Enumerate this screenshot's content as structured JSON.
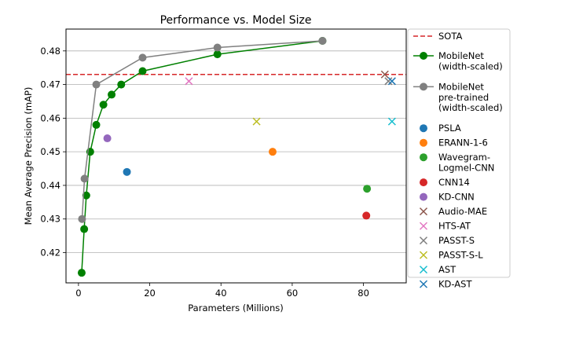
{
  "chart_data": {
    "type": "scatter",
    "title": "Performance vs. Model Size",
    "xlabel": "Parameters (Millions)",
    "ylabel": "Mean Average Precision (mAP)",
    "xlim": [
      -3.5,
      92
    ],
    "ylim": [
      0.411,
      0.4865
    ],
    "xticks": [
      0,
      20,
      40,
      60,
      80
    ],
    "yticks": [
      0.42,
      0.43,
      0.44,
      0.45,
      0.46,
      0.47,
      0.48
    ],
    "grid": "horizontal",
    "legend_position": "outside-right",
    "reference_line": {
      "name": "SOTA",
      "y": 0.473,
      "color": "#d62728",
      "style": "dashed"
    },
    "lines": [
      {
        "name": "MobileNet (width-scaled)",
        "legend_lines": [
          "MobileNet",
          "(width-scaled)"
        ],
        "color": "#008000",
        "points": [
          [
            0.9,
            0.414
          ],
          [
            1.6,
            0.427
          ],
          [
            2.2,
            0.437
          ],
          [
            3.3,
            0.45
          ],
          [
            5.0,
            0.458
          ],
          [
            7.0,
            0.464
          ],
          [
            9.3,
            0.467
          ],
          [
            12.0,
            0.47
          ],
          [
            18.0,
            0.474
          ],
          [
            39.0,
            0.479
          ],
          [
            68.5,
            0.483
          ]
        ]
      },
      {
        "name": "MobileNet pre-trained (width-scaled)",
        "legend_lines": [
          "MobileNet",
          "pre-trained",
          "(width-scaled)"
        ],
        "color": "#808080",
        "points": [
          [
            1.0,
            0.43
          ],
          [
            1.7,
            0.442
          ],
          [
            5.0,
            0.47
          ],
          [
            18.0,
            0.478
          ],
          [
            39.0,
            0.481
          ],
          [
            68.5,
            0.483
          ]
        ]
      }
    ],
    "points": [
      {
        "name": "PSLA",
        "legend_lines": [
          "PSLA"
        ],
        "marker": "circle",
        "color": "#1f77b4",
        "x": 13.6,
        "y": 0.444
      },
      {
        "name": "ERANN-1-6",
        "legend_lines": [
          "ERANN-1-6"
        ],
        "marker": "circle",
        "color": "#ff7f0e",
        "x": 54.5,
        "y": 0.45
      },
      {
        "name": "Wavegram-Logmel-CNN",
        "legend_lines": [
          "Wavegram-",
          "Logmel-CNN"
        ],
        "marker": "circle",
        "color": "#2ca02c",
        "x": 81.0,
        "y": 0.439
      },
      {
        "name": "CNN14",
        "legend_lines": [
          "CNN14"
        ],
        "marker": "circle",
        "color": "#d62728",
        "x": 80.8,
        "y": 0.431
      },
      {
        "name": "KD-CNN",
        "legend_lines": [
          "KD-CNN"
        ],
        "marker": "circle",
        "color": "#9467bd",
        "x": 8.1,
        "y": 0.454
      },
      {
        "name": "Audio-MAE",
        "legend_lines": [
          "Audio-MAE"
        ],
        "marker": "x",
        "color": "#8c564b",
        "x": 86.0,
        "y": 0.473
      },
      {
        "name": "HTS-AT",
        "legend_lines": [
          "HTS-AT"
        ],
        "marker": "x",
        "color": "#e377c2",
        "x": 31.0,
        "y": 0.471
      },
      {
        "name": "PASST-S",
        "legend_lines": [
          "PASST-S"
        ],
        "marker": "x",
        "color": "#7f7f7f",
        "x": 87.0,
        "y": 0.471
      },
      {
        "name": "PASST-S-L",
        "legend_lines": [
          "PASST-S-L"
        ],
        "marker": "x",
        "color": "#bcbd22",
        "x": 50.0,
        "y": 0.459
      },
      {
        "name": "AST",
        "legend_lines": [
          "AST"
        ],
        "marker": "x",
        "color": "#17becf",
        "x": 88.0,
        "y": 0.459
      },
      {
        "name": "KD-AST",
        "legend_lines": [
          "KD-AST"
        ],
        "marker": "x",
        "color": "#1f77b4",
        "x": 88.0,
        "y": 0.471
      }
    ]
  }
}
